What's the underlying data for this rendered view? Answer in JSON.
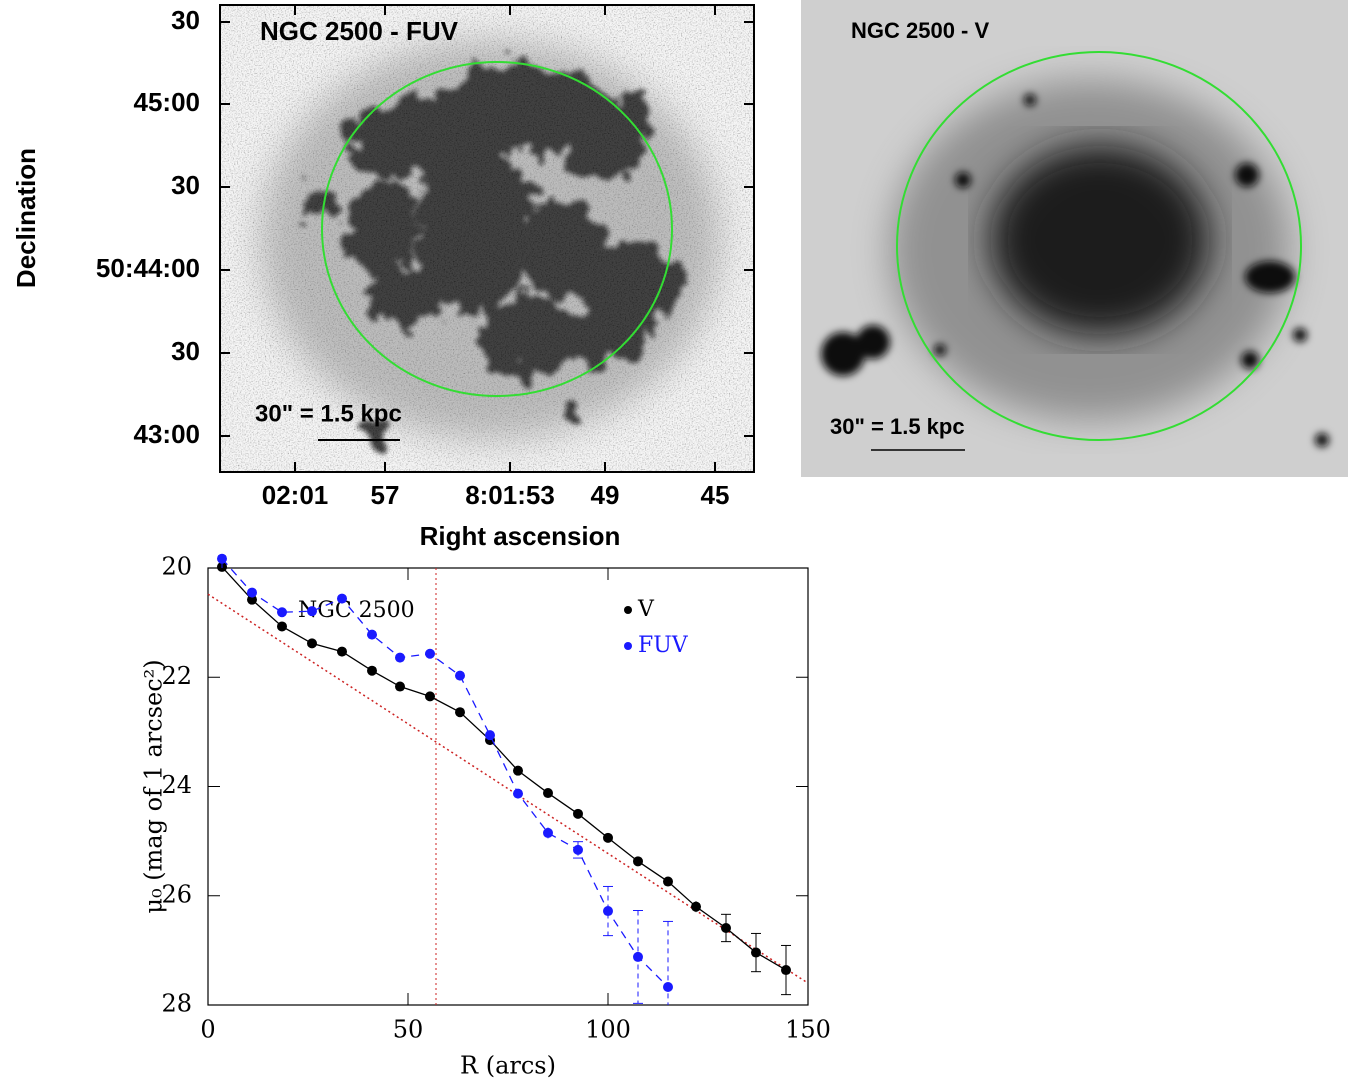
{
  "panels": [
    {
      "title": "NGC 2500 - FUV",
      "scale_label": "30\" = 1.5 kpc",
      "ylabel": "Declination",
      "xlabel": "Right ascension",
      "yticks": [
        "30",
        "45:00",
        "30",
        "50:44:00",
        "30",
        "43:00"
      ],
      "xticks": [
        "02:01",
        "57",
        "8:01:53",
        "49",
        "45"
      ]
    },
    {
      "title": "NGC 2500 - V",
      "scale_label": "30\" = 1.5 kpc"
    }
  ],
  "chart_data": {
    "type": "line",
    "annotation": "NGC 2500",
    "xlabel": "R (arcs)",
    "ylabel": "μ₀ (mag of 1 arcsec²)",
    "xlim": [
      0,
      150
    ],
    "xticks": [
      0,
      50,
      100,
      150
    ],
    "ylim": [
      20,
      28
    ],
    "yticks": [
      20,
      22,
      24,
      26,
      28
    ],
    "y_inverted": true,
    "legend": "upper right",
    "vline_x": 57,
    "vline_color": "#cc2222",
    "fit": {
      "x": [
        0,
        150
      ],
      "values": [
        20.48,
        27.6
      ],
      "color": "#cc2222"
    },
    "series": [
      {
        "name": "V",
        "color": "#000000",
        "dashed": false,
        "x": [
          3.5,
          11,
          18.5,
          26,
          33.5,
          41,
          48,
          55.5,
          63,
          70.5,
          77.5,
          85,
          92.5,
          100,
          107.5,
          115,
          122,
          129.5,
          137,
          144.5
        ],
        "values": [
          19.98,
          20.58,
          21.07,
          21.38,
          21.53,
          21.88,
          22.17,
          22.35,
          22.64,
          23.15,
          23.71,
          24.12,
          24.5,
          24.94,
          25.37,
          25.74,
          26.2,
          26.59,
          27.04,
          27.36
        ],
        "errors": [
          0.03,
          0.03,
          0.03,
          0.03,
          0.03,
          0.03,
          0.03,
          0.03,
          0.03,
          0.03,
          0.04,
          0.04,
          0.05,
          0.05,
          0.06,
          0.08,
          0.1,
          0.25,
          0.35,
          0.45
        ]
      },
      {
        "name": "FUV",
        "color": "#1a1aff",
        "dashed": true,
        "x": [
          3.5,
          11,
          18.5,
          26,
          33.5,
          41,
          48,
          55.5,
          63,
          70.5,
          77.5,
          85,
          92.5,
          100,
          107.5,
          115
        ],
        "values": [
          19.83,
          20.45,
          20.81,
          20.79,
          20.56,
          21.22,
          21.64,
          21.57,
          21.97,
          23.06,
          24.13,
          24.85,
          25.16,
          26.28,
          27.12,
          27.67
        ],
        "errors": [
          0.03,
          0.03,
          0.03,
          0.03,
          0.03,
          0.03,
          0.03,
          0.03,
          0.03,
          0.05,
          0.08,
          0.1,
          0.15,
          0.45,
          0.85,
          1.2
        ]
      }
    ]
  }
}
